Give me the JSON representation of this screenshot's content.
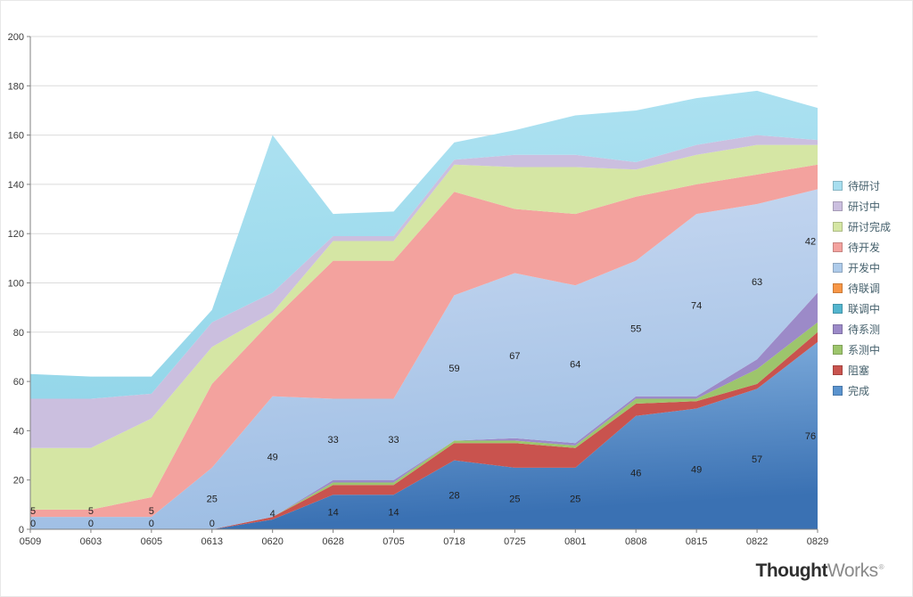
{
  "footer": {
    "brand_bold": "Thought",
    "brand_light": "Works",
    "registered": "®"
  },
  "chart_data": {
    "type": "area",
    "stacked": true,
    "title": "",
    "ylim": [
      0,
      200
    ],
    "ytick_interval": 20,
    "grid": true,
    "legend_position": "right",
    "categories": [
      "0509",
      "0603",
      "0605",
      "0613",
      "0620",
      "0628",
      "0705",
      "0718",
      "0725",
      "0801",
      "0808",
      "0815",
      "0822",
      "0829"
    ],
    "series": [
      {
        "name": "完成",
        "fill": [
          "#8CB8E4",
          "#3A71B3"
        ],
        "show_labels": true,
        "values": [
          0,
          0,
          0,
          0,
          4,
          14,
          14,
          28,
          25,
          25,
          46,
          49,
          57,
          76
        ]
      },
      {
        "name": "阻塞",
        "fill": "#C9534E",
        "values": [
          0,
          0,
          0,
          0,
          1,
          4,
          4,
          7,
          10,
          8,
          5,
          3,
          2,
          4
        ]
      },
      {
        "name": "系测中",
        "fill": "#9DC56C",
        "values": [
          0,
          0,
          0,
          0,
          0,
          1,
          1,
          1,
          1,
          1,
          2,
          1,
          6,
          4
        ]
      },
      {
        "name": "待系测",
        "fill": "#9C8AC8",
        "values": [
          0,
          0,
          0,
          0,
          0,
          1,
          1,
          0,
          1,
          1,
          1,
          1,
          4,
          12
        ]
      },
      {
        "name": "联调中",
        "fill": "#53B5CE",
        "values": [
          0,
          0,
          0,
          0,
          0,
          0,
          0,
          0,
          0,
          0,
          0,
          0,
          0,
          0
        ]
      },
      {
        "name": "待联调",
        "fill": "#F79646",
        "values": [
          0,
          0,
          0,
          0,
          0,
          0,
          0,
          0,
          0,
          0,
          0,
          0,
          0,
          0
        ]
      },
      {
        "name": "开发中",
        "fill": [
          "#CCDBF2",
          "#9EBEE4"
        ],
        "show_labels": true,
        "values": [
          5,
          5,
          5,
          25,
          49,
          33,
          33,
          59,
          67,
          64,
          55,
          74,
          63,
          42
        ]
      },
      {
        "name": "待开发",
        "fill": "#F3A29E",
        "values": [
          3,
          3,
          8,
          34,
          31,
          56,
          56,
          42,
          26,
          29,
          26,
          12,
          12,
          10
        ]
      },
      {
        "name": "研讨完成",
        "fill": "#D5E6A4",
        "values": [
          25,
          25,
          32,
          15,
          3,
          8,
          8,
          11,
          17,
          19,
          11,
          12,
          12,
          8
        ]
      },
      {
        "name": "研讨中",
        "fill": "#CBBFDF",
        "values": [
          20,
          20,
          10,
          10,
          8,
          2,
          2,
          2,
          5,
          5,
          3,
          4,
          4,
          2
        ]
      },
      {
        "name": "待研讨",
        "fill": [
          "#B2E4F3",
          "#93D6E9"
        ],
        "values": [
          10,
          9,
          7,
          5,
          64,
          9,
          10,
          7,
          10,
          16,
          21,
          19,
          18,
          13
        ]
      }
    ],
    "legend": [
      {
        "label": "待研讨",
        "color": "#A7DEEF"
      },
      {
        "label": "研讨中",
        "color": "#CBBFDF"
      },
      {
        "label": "研讨完成",
        "color": "#D5E6A4"
      },
      {
        "label": "待开发",
        "color": "#F3A29E"
      },
      {
        "label": "开发中",
        "color": "#AECBEA"
      },
      {
        "label": "待联调",
        "color": "#F79646"
      },
      {
        "label": "联调中",
        "color": "#53B5CE"
      },
      {
        "label": "待系测",
        "color": "#9C8AC8"
      },
      {
        "label": "系测中",
        "color": "#9DC56C"
      },
      {
        "label": "阻塞",
        "color": "#C9534E"
      },
      {
        "label": "完成",
        "color": "#5A93CE"
      }
    ]
  }
}
